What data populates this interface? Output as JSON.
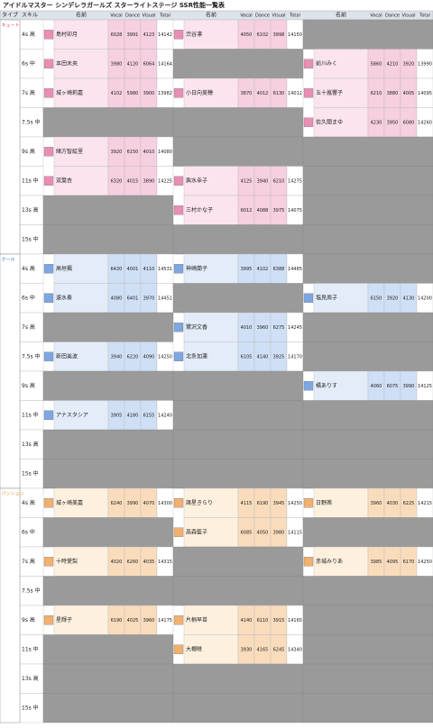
{
  "title": "アイドルマスター シンデレラガールズ スターライトステージ SSR性能一覧表",
  "headers": [
    "タイプ",
    "スキル",
    "名前",
    "Vocal",
    "Dance",
    "Visual",
    "Total"
  ],
  "sections": [
    {
      "label": "キュート",
      "rows": [
        {
          "label": "4s 高",
          "cells": [
            {
              "name": "島村卯月",
              "stats": [
                6028,
                3991,
                4123
              ],
              "total": 14142
            },
            {
              "name": "渋谷凛",
              "stats": [
                4050,
                6102,
                3998
              ],
              "total": 14150
            },
            null
          ]
        },
        {
          "label": "6s 中",
          "cells": [
            {
              "name": "本田未央",
              "stats": [
                3980,
                4120,
                6064
              ],
              "total": 14164
            },
            null,
            {
              "name": "前川みく",
              "stats": [
                5860,
                4210,
                3920
              ],
              "total": 13990
            }
          ]
        },
        {
          "label": "7s 高",
          "cells": [
            {
              "name": "城ヶ崎莉嘉",
              "stats": [
                4102,
                5980,
                3900
              ],
              "total": 13982
            },
            {
              "name": "小日向美穂",
              "stats": [
                3870,
                4012,
                6130
              ],
              "total": 14012
            },
            {
              "name": "五十嵐響子",
              "stats": [
                6210,
                3880,
                4005
              ],
              "total": 14095
            }
          ]
        },
        {
          "label": "7.5s 中",
          "cells": [
            null,
            null,
            {
              "name": "佐久間まゆ",
              "stats": [
                4230,
                3950,
                6080
              ],
              "total": 14260
            }
          ]
        },
        {
          "label": "9s 高",
          "cells": [
            {
              "name": "緒方智絵里",
              "stats": [
                3920,
                6150,
                4010
              ],
              "total": 14080
            },
            null,
            null
          ]
        },
        {
          "label": "11s 中",
          "cells": [
            {
              "name": "双葉杏",
              "stats": [
                6320,
                4015,
                3890
              ],
              "total": 14225
            },
            {
              "name": "輿水幸子",
              "stats": [
                4125,
                3940,
                6210
              ],
              "total": 14275
            },
            null
          ]
        },
        {
          "label": "13s 高",
          "cells": [
            null,
            {
              "name": "三村かな子",
              "stats": [
                6012,
                4088,
                3975
              ],
              "total": 14075
            },
            null
          ]
        },
        {
          "label": "15s 中",
          "cells": [
            null,
            null,
            null
          ]
        }
      ]
    },
    {
      "label": "クール",
      "rows": [
        {
          "label": "4s 高",
          "cells": [
            {
              "name": "高垣楓",
              "stats": [
                6420,
                4001,
                4110
              ],
              "total": 14531
            },
            {
              "name": "神崎蘭子",
              "stats": [
                3995,
                4102,
                6388
              ],
              "total": 14485
            },
            null
          ]
        },
        {
          "label": "6s 中",
          "cells": [
            {
              "name": "速水奏",
              "stats": [
                4080,
                6401,
                3970
              ],
              "total": 14451
            },
            null,
            {
              "name": "塩見周子",
              "stats": [
                6150,
                3920,
                4130
              ],
              "total": 14200
            }
          ]
        },
        {
          "label": "7s 高",
          "cells": [
            null,
            {
              "name": "鷺沢文香",
              "stats": [
                4010,
                3960,
                6275
              ],
              "total": 14245
            },
            null
          ]
        },
        {
          "label": "7.5s 中",
          "cells": [
            {
              "name": "新田美波",
              "stats": [
                3940,
                6220,
                4090
              ],
              "total": 14250
            },
            {
              "name": "北条加蓮",
              "stats": [
                6105,
                4140,
                3925
              ],
              "total": 14170
            },
            null
          ]
        },
        {
          "label": "9s 高",
          "cells": [
            null,
            null,
            {
              "name": "橘ありす",
              "stats": [
                4060,
                6075,
                3990
              ],
              "total": 14125
            }
          ]
        },
        {
          "label": "11s 中",
          "cells": [
            {
              "name": "アナスタシア",
              "stats": [
                3905,
                4180,
                6155
              ],
              "total": 14240
            },
            null,
            null
          ]
        },
        {
          "label": "13s 高",
          "cells": [
            null,
            null,
            null
          ]
        },
        {
          "label": "15s 中",
          "cells": [
            null,
            null,
            null
          ]
        }
      ]
    },
    {
      "label": "パッション",
      "rows": [
        {
          "label": "4s 高",
          "cells": [
            {
              "name": "城ヶ崎美嘉",
              "stats": [
                6240,
                3990,
                4070
              ],
              "total": 14300
            },
            {
              "name": "諸星きらり",
              "stats": [
                4115,
                6190,
                3945
              ],
              "total": 14250
            },
            {
              "name": "日野茜",
              "stats": [
                3960,
                4030,
                6225
              ],
              "total": 14215
            }
          ]
        },
        {
          "label": "6s 中",
          "cells": [
            null,
            {
              "name": "高森藍子",
              "stats": [
                6085,
                4050,
                3980
              ],
              "total": 14115
            },
            null
          ]
        },
        {
          "label": "7s 高",
          "cells": [
            {
              "name": "十時愛梨",
              "stats": [
                4020,
                6260,
                4035
              ],
              "total": 14315
            },
            null,
            {
              "name": "赤城みりあ",
              "stats": [
                3985,
                4095,
                6170
              ],
              "total": 14250
            }
          ]
        },
        {
          "label": "7.5s 中",
          "cells": [
            null,
            null,
            null
          ]
        },
        {
          "label": "9s 高",
          "cells": [
            {
              "name": "星輝子",
              "stats": [
                6190,
                4025,
                3960
              ],
              "total": 14175
            },
            {
              "name": "片桐早苗",
              "stats": [
                4140,
                6110,
                3915
              ],
              "total": 14165
            },
            null
          ]
        },
        {
          "label": "11s 中",
          "cells": [
            null,
            {
              "name": "大槻唯",
              "stats": [
                3930,
                4165,
                6245
              ],
              "total": 14340
            },
            null
          ]
        },
        {
          "label": "13s 高",
          "cells": [
            null,
            null,
            null
          ]
        },
        {
          "label": "15s 中",
          "cells": [
            null,
            null,
            null
          ]
        }
      ]
    }
  ]
}
